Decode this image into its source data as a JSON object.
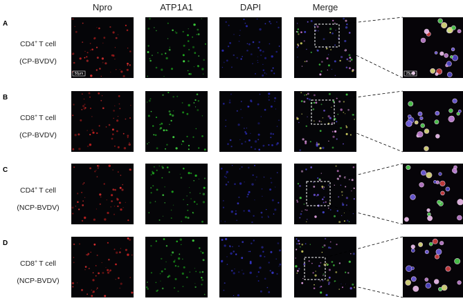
{
  "columns": [
    "Npro",
    "ATP1A1",
    "DAPI",
    "Merge"
  ],
  "rows": [
    {
      "letter": "A",
      "cell": "CD4",
      "sup": "+",
      "cell_rest": "T cell",
      "virus": "(CP-BVDV)"
    },
    {
      "letter": "B",
      "cell": "CD8",
      "sup": "+",
      "cell_rest": "T cell",
      "virus": "(CP-BVDV)"
    },
    {
      "letter": "C",
      "cell": "CD4",
      "sup": "+",
      "cell_rest": "T cell",
      "virus": "(NCP-BVDV)"
    },
    {
      "letter": "D",
      "cell": "CD8",
      "sup": "+",
      "cell_rest": "T cell",
      "virus": "(NCP-BVDV)"
    }
  ],
  "scale_bars": {
    "main": "50μm",
    "zoom": "25μm"
  }
}
